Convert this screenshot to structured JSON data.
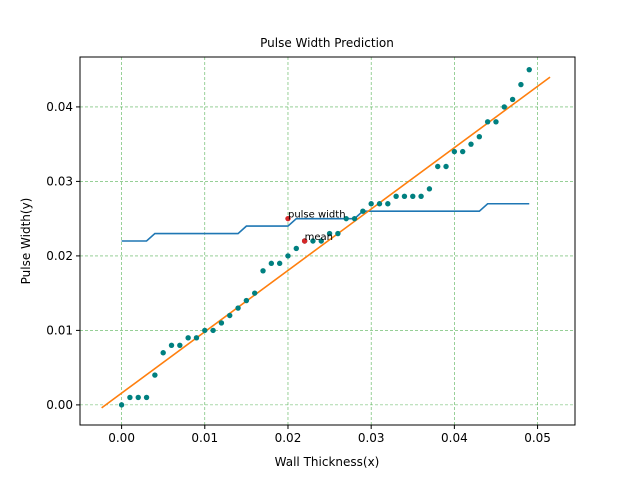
{
  "chart_data": {
    "type": "scatter",
    "title": "Pulse Width Prediction",
    "xlabel": "Wall Thickness(x)",
    "ylabel": "Pulse Width(y)",
    "xlim": [
      -0.005,
      0.0545
    ],
    "ylim": [
      -0.0027,
      0.0467
    ],
    "xticks": [
      0.0,
      0.01,
      0.02,
      0.03,
      0.04,
      0.05
    ],
    "xtick_labels": [
      "0.00",
      "0.01",
      "0.02",
      "0.03",
      "0.04",
      "0.05"
    ],
    "yticks": [
      0.0,
      0.01,
      0.02,
      0.03,
      0.04
    ],
    "ytick_labels": [
      "0.00",
      "0.01",
      "0.02",
      "0.03",
      "0.04"
    ],
    "grid": true,
    "colors": {
      "points": "#008080",
      "fit_line": "#ff7f0e",
      "step_line": "#1f77b4",
      "markers": "#d62728",
      "grid": "#2ca02c"
    },
    "series": [
      {
        "kind": "scatter",
        "x": [
          0.0,
          0.001,
          0.002,
          0.003,
          0.004,
          0.005,
          0.006,
          0.007,
          0.008,
          0.009,
          0.01,
          0.011,
          0.012,
          0.013,
          0.014,
          0.015,
          0.016,
          0.017,
          0.018,
          0.019,
          0.02,
          0.021,
          0.022,
          0.023,
          0.024,
          0.025,
          0.026,
          0.027,
          0.028,
          0.029,
          0.03,
          0.031,
          0.032,
          0.033,
          0.034,
          0.035,
          0.036,
          0.037,
          0.038,
          0.039,
          0.04,
          0.041,
          0.042,
          0.043,
          0.044,
          0.045,
          0.046,
          0.047,
          0.048,
          0.049
        ],
        "y": [
          0.0,
          0.001,
          0.001,
          0.001,
          0.004,
          0.007,
          0.008,
          0.008,
          0.009,
          0.009,
          0.01,
          0.01,
          0.011,
          0.012,
          0.013,
          0.014,
          0.015,
          0.018,
          0.019,
          0.019,
          0.02,
          0.021,
          0.022,
          0.022,
          0.022,
          0.023,
          0.023,
          0.025,
          0.025,
          0.026,
          0.027,
          0.027,
          0.027,
          0.028,
          0.028,
          0.028,
          0.028,
          0.029,
          0.032,
          0.032,
          0.034,
          0.034,
          0.035,
          0.036,
          0.038,
          0.038,
          0.04,
          0.041,
          0.043,
          0.045
        ]
      },
      {
        "kind": "line",
        "x": [
          -0.0024,
          0.0515
        ],
        "y": [
          -0.0004,
          0.044
        ]
      },
      {
        "kind": "line",
        "x": [
          0.0,
          0.003,
          0.004,
          0.014,
          0.015,
          0.02,
          0.021,
          0.027,
          0.028,
          0.029,
          0.03,
          0.043,
          0.044,
          0.049
        ],
        "y": [
          0.022,
          0.022,
          0.023,
          0.023,
          0.024,
          0.024,
          0.025,
          0.025,
          0.025,
          0.026,
          0.026,
          0.026,
          0.027,
          0.027
        ]
      }
    ],
    "annotations": [
      {
        "text": "pulse width",
        "x": 0.02,
        "y": 0.025
      },
      {
        "text": "mean",
        "x": 0.022,
        "y": 0.022
      }
    ]
  }
}
